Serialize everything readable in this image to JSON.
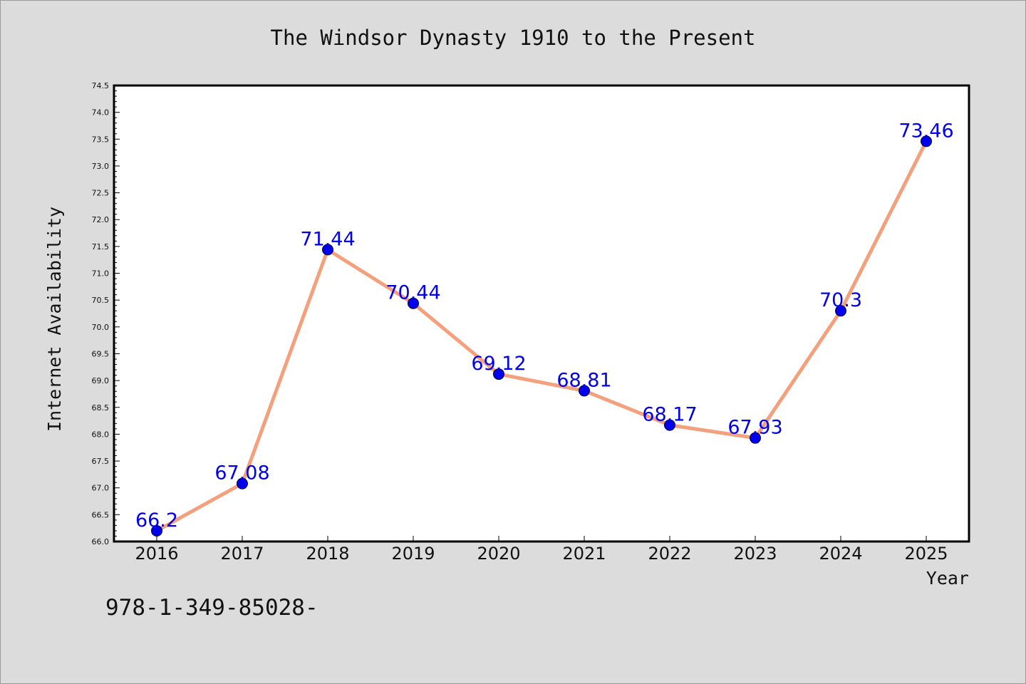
{
  "chart_data": {
    "type": "line",
    "title": "The Windsor Dynasty 1910 to the Present",
    "xlabel": "Year",
    "ylabel": "Internet Availability",
    "x": [
      "2016",
      "2017",
      "2018",
      "2019",
      "2020",
      "2021",
      "2022",
      "2023",
      "2024",
      "2025"
    ],
    "series": [
      {
        "values": [
          66.2,
          67.08,
          71.44,
          70.44,
          69.12,
          68.81,
          68.17,
          67.93,
          70.3,
          73.46
        ],
        "data_labels": [
          "66.2",
          "67.08",
          "71.44",
          "70.44",
          "69.12",
          "68.81",
          "68.17",
          "67.93",
          "70.3",
          "73.46"
        ],
        "line_color": "#f4a07c",
        "marker_color": "#0000ee",
        "label_color": "#0000ee"
      }
    ],
    "ylim": [
      66.0,
      74.5
    ],
    "yticks": [
      "66.0",
      "66.5",
      "67.0",
      "67.5",
      "68.0",
      "68.5",
      "69.0",
      "69.5",
      "70.0",
      "70.5",
      "71.0",
      "71.5",
      "72.0",
      "72.5",
      "73.0",
      "73.5",
      "74.0",
      "74.5"
    ],
    "grid": false,
    "legend": "none"
  },
  "footer_text": "978-1-349-85028-"
}
